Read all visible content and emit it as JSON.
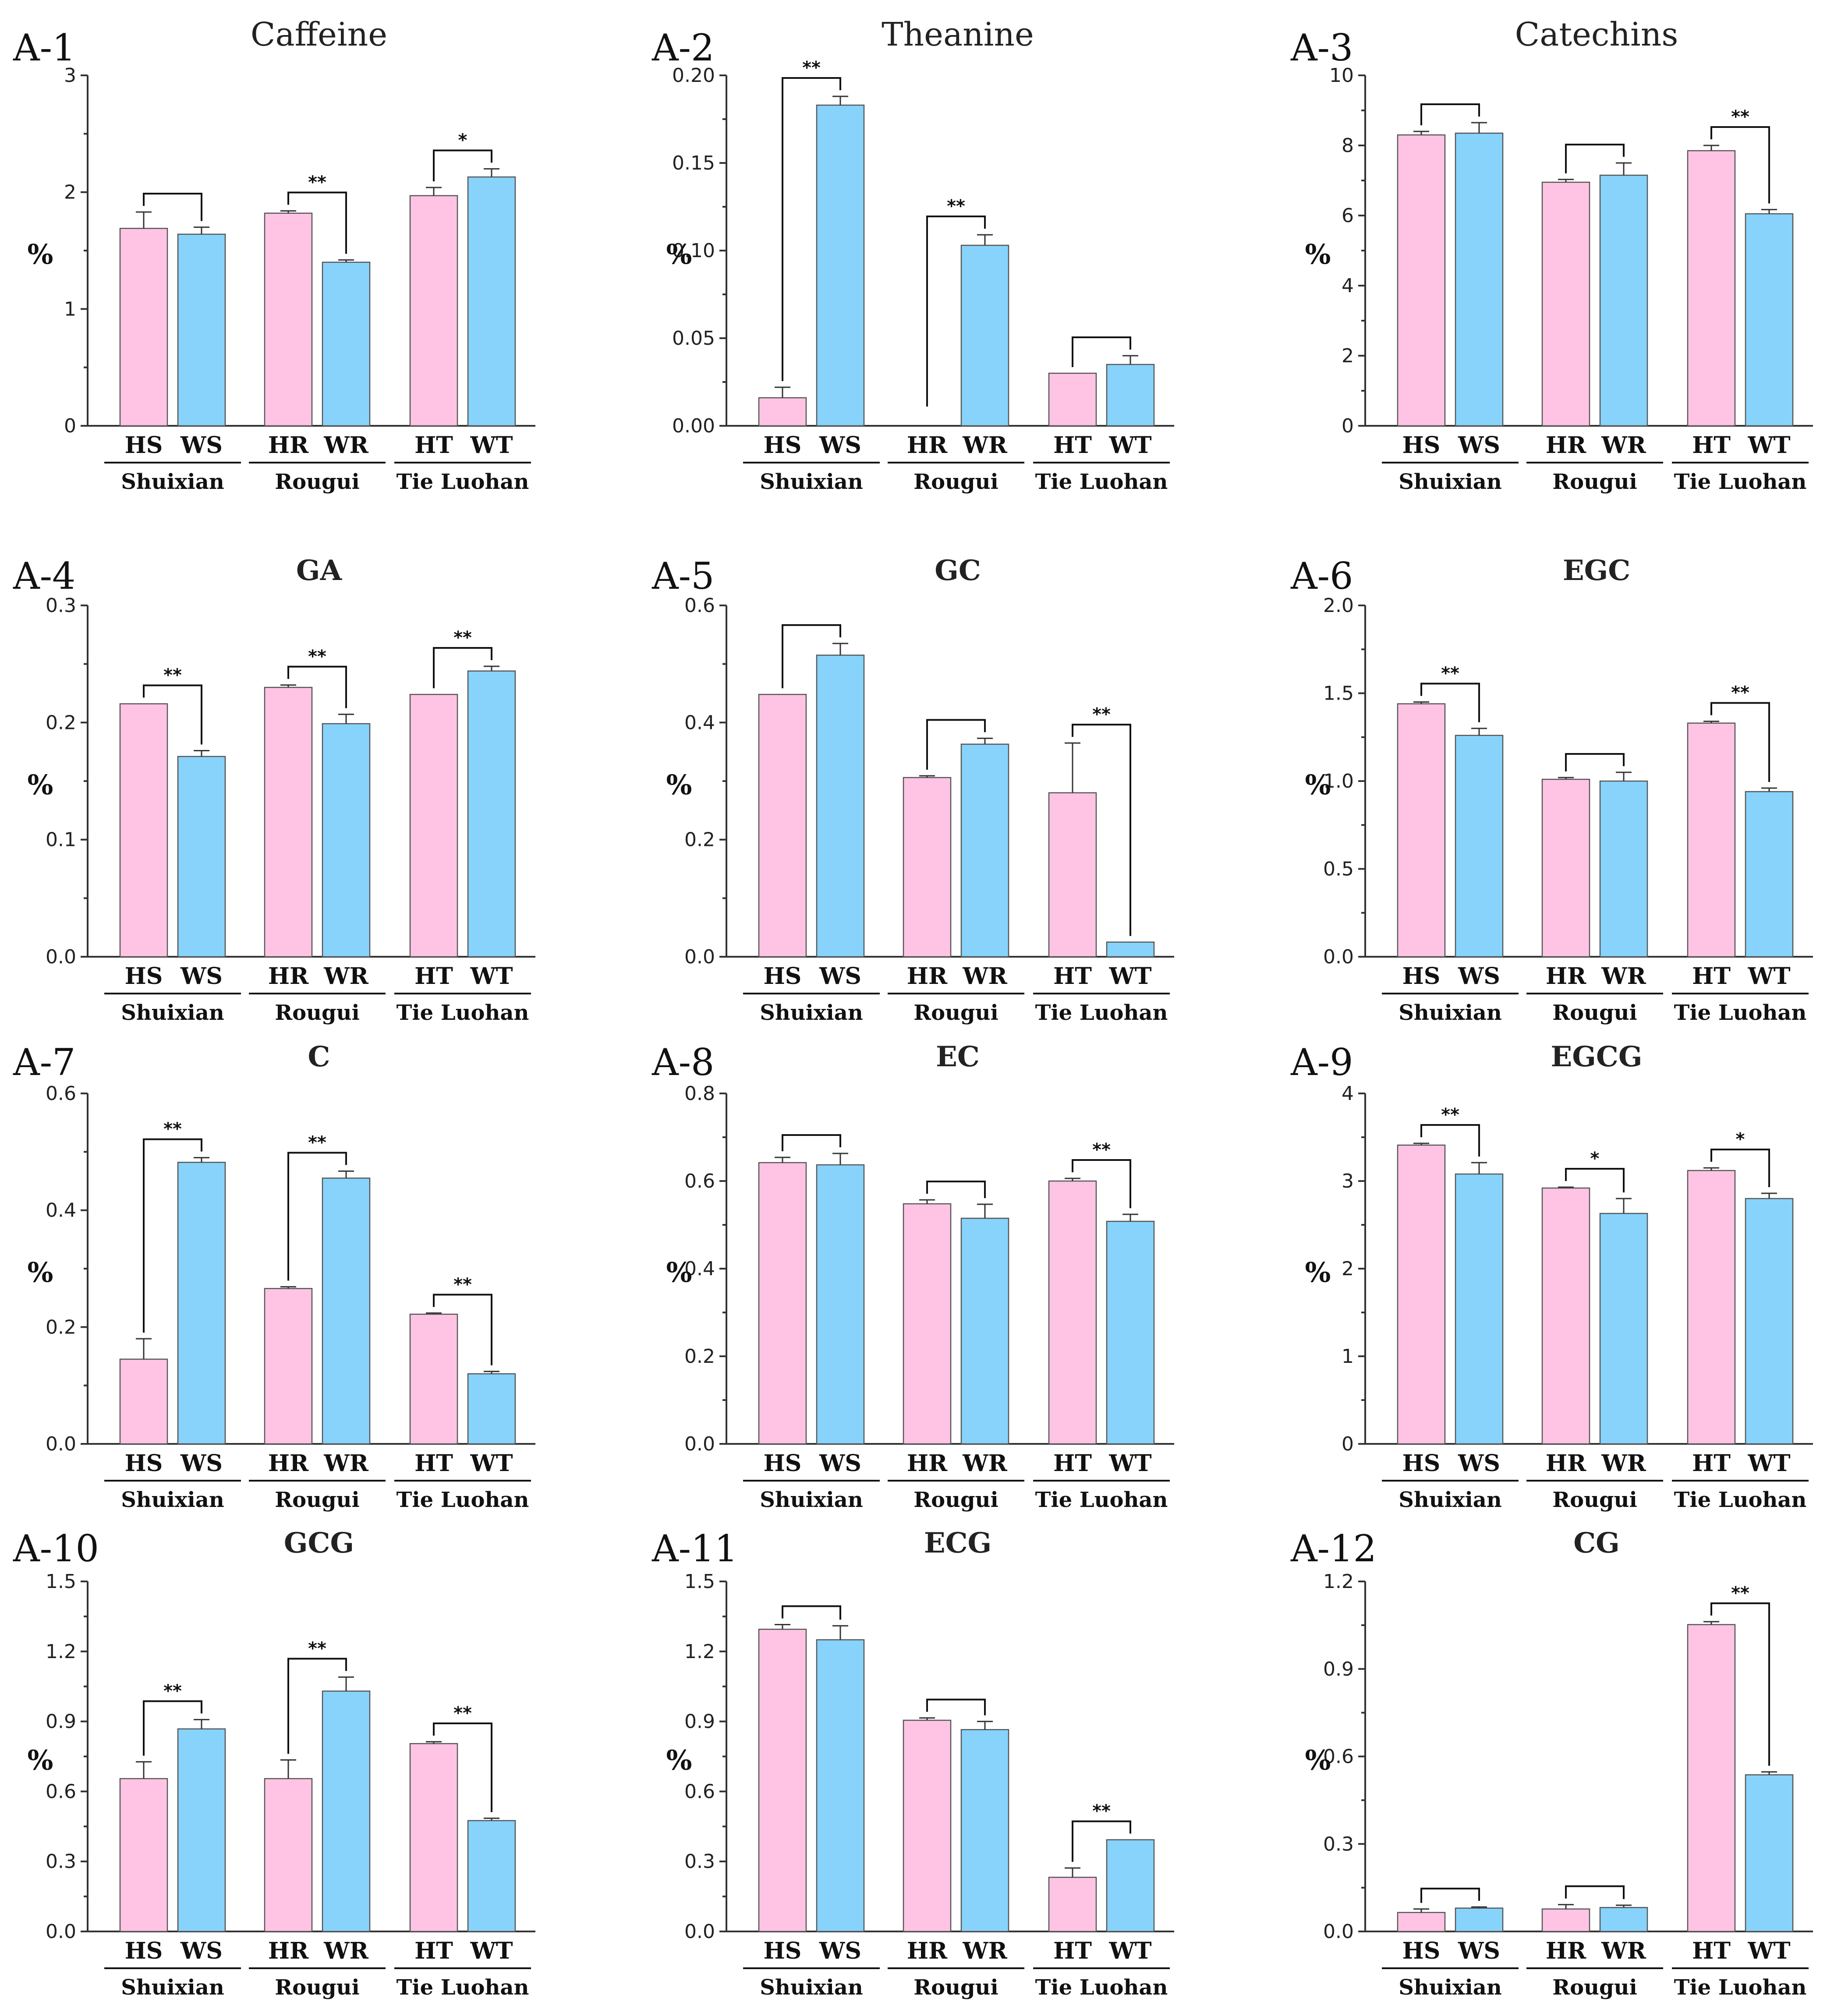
{
  "chart_data": [
    {
      "type": "bar",
      "label": "A-1",
      "title": "Caffeine",
      "ylabel": "%",
      "ylim": [
        0,
        3
      ],
      "yticks": [
        0,
        1,
        2,
        3
      ],
      "categories": [
        "HS",
        "WS",
        "HR",
        "WR",
        "HT",
        "WT"
      ],
      "groups": [
        "Shuixian",
        "Rougui",
        "Tie Luohan"
      ],
      "values": [
        1.69,
        1.64,
        1.82,
        1.4,
        1.97,
        2.13
      ],
      "errors": [
        0.14,
        0.06,
        0.02,
        0.02,
        0.07,
        0.07
      ],
      "significance": [
        "",
        "**",
        "*"
      ]
    },
    {
      "type": "bar",
      "label": "A-2",
      "title": "Theanine",
      "ylabel": "%",
      "ylim": [
        0,
        0.2
      ],
      "yticks": [
        "0.00",
        "0.05",
        "0.10",
        "0.15",
        "0.20"
      ],
      "categories": [
        "HS",
        "WS",
        "HR",
        "WR",
        "HT",
        "WT"
      ],
      "groups": [
        "Shuixian",
        "Rougui",
        "Tie Luohan"
      ],
      "values": [
        0.016,
        0.183,
        0,
        0.103,
        0.03,
        0.035
      ],
      "errors": [
        0.006,
        0.005,
        0,
        0.006,
        0,
        0.005
      ],
      "significance": [
        "**",
        "**",
        ""
      ]
    },
    {
      "type": "bar",
      "label": "A-3",
      "title": "Catechins",
      "ylabel": "%",
      "ylim": [
        0,
        10
      ],
      "yticks": [
        0,
        2,
        4,
        6,
        8,
        10
      ],
      "categories": [
        "HS",
        "WS",
        "HR",
        "WR",
        "HT",
        "WT"
      ],
      "groups": [
        "Shuixian",
        "Rougui",
        "Tie Luohan"
      ],
      "values": [
        8.3,
        8.35,
        6.95,
        7.15,
        7.85,
        6.05
      ],
      "errors": [
        0.1,
        0.3,
        0.08,
        0.35,
        0.15,
        0.12
      ],
      "significance": [
        "",
        "",
        "**"
      ]
    },
    {
      "type": "bar",
      "label": "A-4",
      "title": "GA",
      "ylabel": "%",
      "ylim": [
        0,
        0.3
      ],
      "yticks": [
        "0.0",
        "0.1",
        "0.2",
        "0.3"
      ],
      "categories": [
        "HS",
        "WS",
        "HR",
        "WR",
        "HT",
        "WT"
      ],
      "groups": [
        "Shuixian",
        "Rougui",
        "Tie Luohan"
      ],
      "values": [
        0.216,
        0.171,
        0.23,
        0.199,
        0.224,
        0.244
      ],
      "errors": [
        0,
        0.005,
        0.002,
        0.008,
        0,
        0.004
      ],
      "significance": [
        "**",
        "**",
        "**"
      ]
    },
    {
      "type": "bar",
      "label": "A-5",
      "title": "GC",
      "ylabel": "%",
      "ylim": [
        0,
        0.6
      ],
      "yticks": [
        "0.0",
        "0.2",
        "0.4",
        "0.6"
      ],
      "categories": [
        "HS",
        "WS",
        "HR",
        "WR",
        "HT",
        "WT"
      ],
      "groups": [
        "Shuixian",
        "Rougui",
        "Tie Luohan"
      ],
      "values": [
        0.448,
        0.515,
        0.306,
        0.363,
        0.28,
        0.025
      ],
      "errors": [
        0,
        0.02,
        0.003,
        0.01,
        0.085,
        0
      ],
      "significance": [
        "",
        "",
        "**"
      ]
    },
    {
      "type": "bar",
      "label": "A-6",
      "title": "EGC",
      "ylabel": "%",
      "ylim": [
        0,
        2.0
      ],
      "yticks": [
        "0.0",
        "0.5",
        "1.0",
        "1.5",
        "2.0"
      ],
      "categories": [
        "HS",
        "WS",
        "HR",
        "WR",
        "HT",
        "WT"
      ],
      "groups": [
        "Shuixian",
        "Rougui",
        "Tie Luohan"
      ],
      "values": [
        1.44,
        1.26,
        1.01,
        1.0,
        1.33,
        0.94
      ],
      "errors": [
        0.01,
        0.04,
        0.01,
        0.05,
        0.01,
        0.02
      ],
      "significance": [
        "**",
        "",
        "**"
      ]
    },
    {
      "type": "bar",
      "label": "A-7",
      "title": "C",
      "ylabel": "%",
      "ylim": [
        0,
        0.6
      ],
      "yticks": [
        "0.0",
        "0.2",
        "0.4",
        "0.6"
      ],
      "categories": [
        "HS",
        "WS",
        "HR",
        "WR",
        "HT",
        "WT"
      ],
      "groups": [
        "Shuixian",
        "Rougui",
        "Tie Luohan"
      ],
      "values": [
        0.145,
        0.482,
        0.266,
        0.455,
        0.222,
        0.12
      ],
      "errors": [
        0.035,
        0.008,
        0.003,
        0.012,
        0.002,
        0.004
      ],
      "significance": [
        "**",
        "**",
        "**"
      ]
    },
    {
      "type": "bar",
      "label": "A-8",
      "title": "EC",
      "ylabel": "%",
      "ylim": [
        0,
        0.8
      ],
      "yticks": [
        "0.0",
        "0.2",
        "0.4",
        "0.6",
        "0.8"
      ],
      "categories": [
        "HS",
        "WS",
        "HR",
        "WR",
        "HT",
        "WT"
      ],
      "groups": [
        "Shuixian",
        "Rougui",
        "Tie Luohan"
      ],
      "values": [
        0.642,
        0.637,
        0.548,
        0.515,
        0.6,
        0.508
      ],
      "errors": [
        0.012,
        0.026,
        0.009,
        0.032,
        0.006,
        0.016
      ],
      "significance": [
        "",
        "",
        "**"
      ]
    },
    {
      "type": "bar",
      "label": "A-9",
      "title": "EGCG",
      "ylabel": "%",
      "ylim": [
        0,
        4
      ],
      "yticks": [
        0,
        1,
        2,
        3,
        4
      ],
      "categories": [
        "HS",
        "WS",
        "HR",
        "WR",
        "HT",
        "WT"
      ],
      "groups": [
        "Shuixian",
        "Rougui",
        "Tie Luohan"
      ],
      "values": [
        3.41,
        3.08,
        2.92,
        2.63,
        3.12,
        2.8
      ],
      "errors": [
        0.02,
        0.13,
        0.01,
        0.17,
        0.03,
        0.06
      ],
      "significance": [
        "**",
        "*",
        "*"
      ]
    },
    {
      "type": "bar",
      "label": "A-10",
      "title": "GCG",
      "ylabel": "%",
      "ylim": [
        0,
        1.5
      ],
      "yticks": [
        "0.0",
        "0.3",
        "0.6",
        "0.9",
        "1.2",
        "1.5"
      ],
      "categories": [
        "HS",
        "WS",
        "HR",
        "WR",
        "HT",
        "WT"
      ],
      "groups": [
        "Shuixian",
        "Rougui",
        "Tie Luohan"
      ],
      "values": [
        0.655,
        0.868,
        0.655,
        1.03,
        0.805,
        0.475
      ],
      "errors": [
        0.072,
        0.04,
        0.08,
        0.06,
        0.008,
        0.01
      ],
      "significance": [
        "**",
        "**",
        "**"
      ]
    },
    {
      "type": "bar",
      "label": "A-11",
      "title": "ECG",
      "ylabel": "%",
      "ylim": [
        0,
        1.5
      ],
      "yticks": [
        "0.0",
        "0.3",
        "0.6",
        "0.9",
        "1.2",
        "1.5"
      ],
      "categories": [
        "HS",
        "WS",
        "HR",
        "WR",
        "HT",
        "WT"
      ],
      "groups": [
        "Shuixian",
        "Rougui",
        "Tie Luohan"
      ],
      "values": [
        1.295,
        1.25,
        0.905,
        0.865,
        0.232,
        0.393
      ],
      "errors": [
        0.02,
        0.06,
        0.01,
        0.035,
        0.04,
        0
      ],
      "significance": [
        "",
        "",
        "**"
      ]
    },
    {
      "type": "bar",
      "label": "A-12",
      "title": "CG",
      "ylabel": "%",
      "ylim": [
        0,
        1.2
      ],
      "yticks": [
        "0.0",
        "0.3",
        "0.6",
        "0.9",
        "1.2"
      ],
      "categories": [
        "HS",
        "WS",
        "HR",
        "WR",
        "HT",
        "WT"
      ],
      "groups": [
        "Shuixian",
        "Rougui",
        "Tie Luohan"
      ],
      "values": [
        0.065,
        0.08,
        0.077,
        0.082,
        1.052,
        0.537
      ],
      "errors": [
        0.012,
        0.004,
        0.015,
        0.008,
        0.01,
        0.01
      ],
      "significance": [
        "",
        "",
        "**"
      ]
    }
  ],
  "colors": {
    "H": "#ffc4e4",
    "W": "#87d3fb"
  }
}
